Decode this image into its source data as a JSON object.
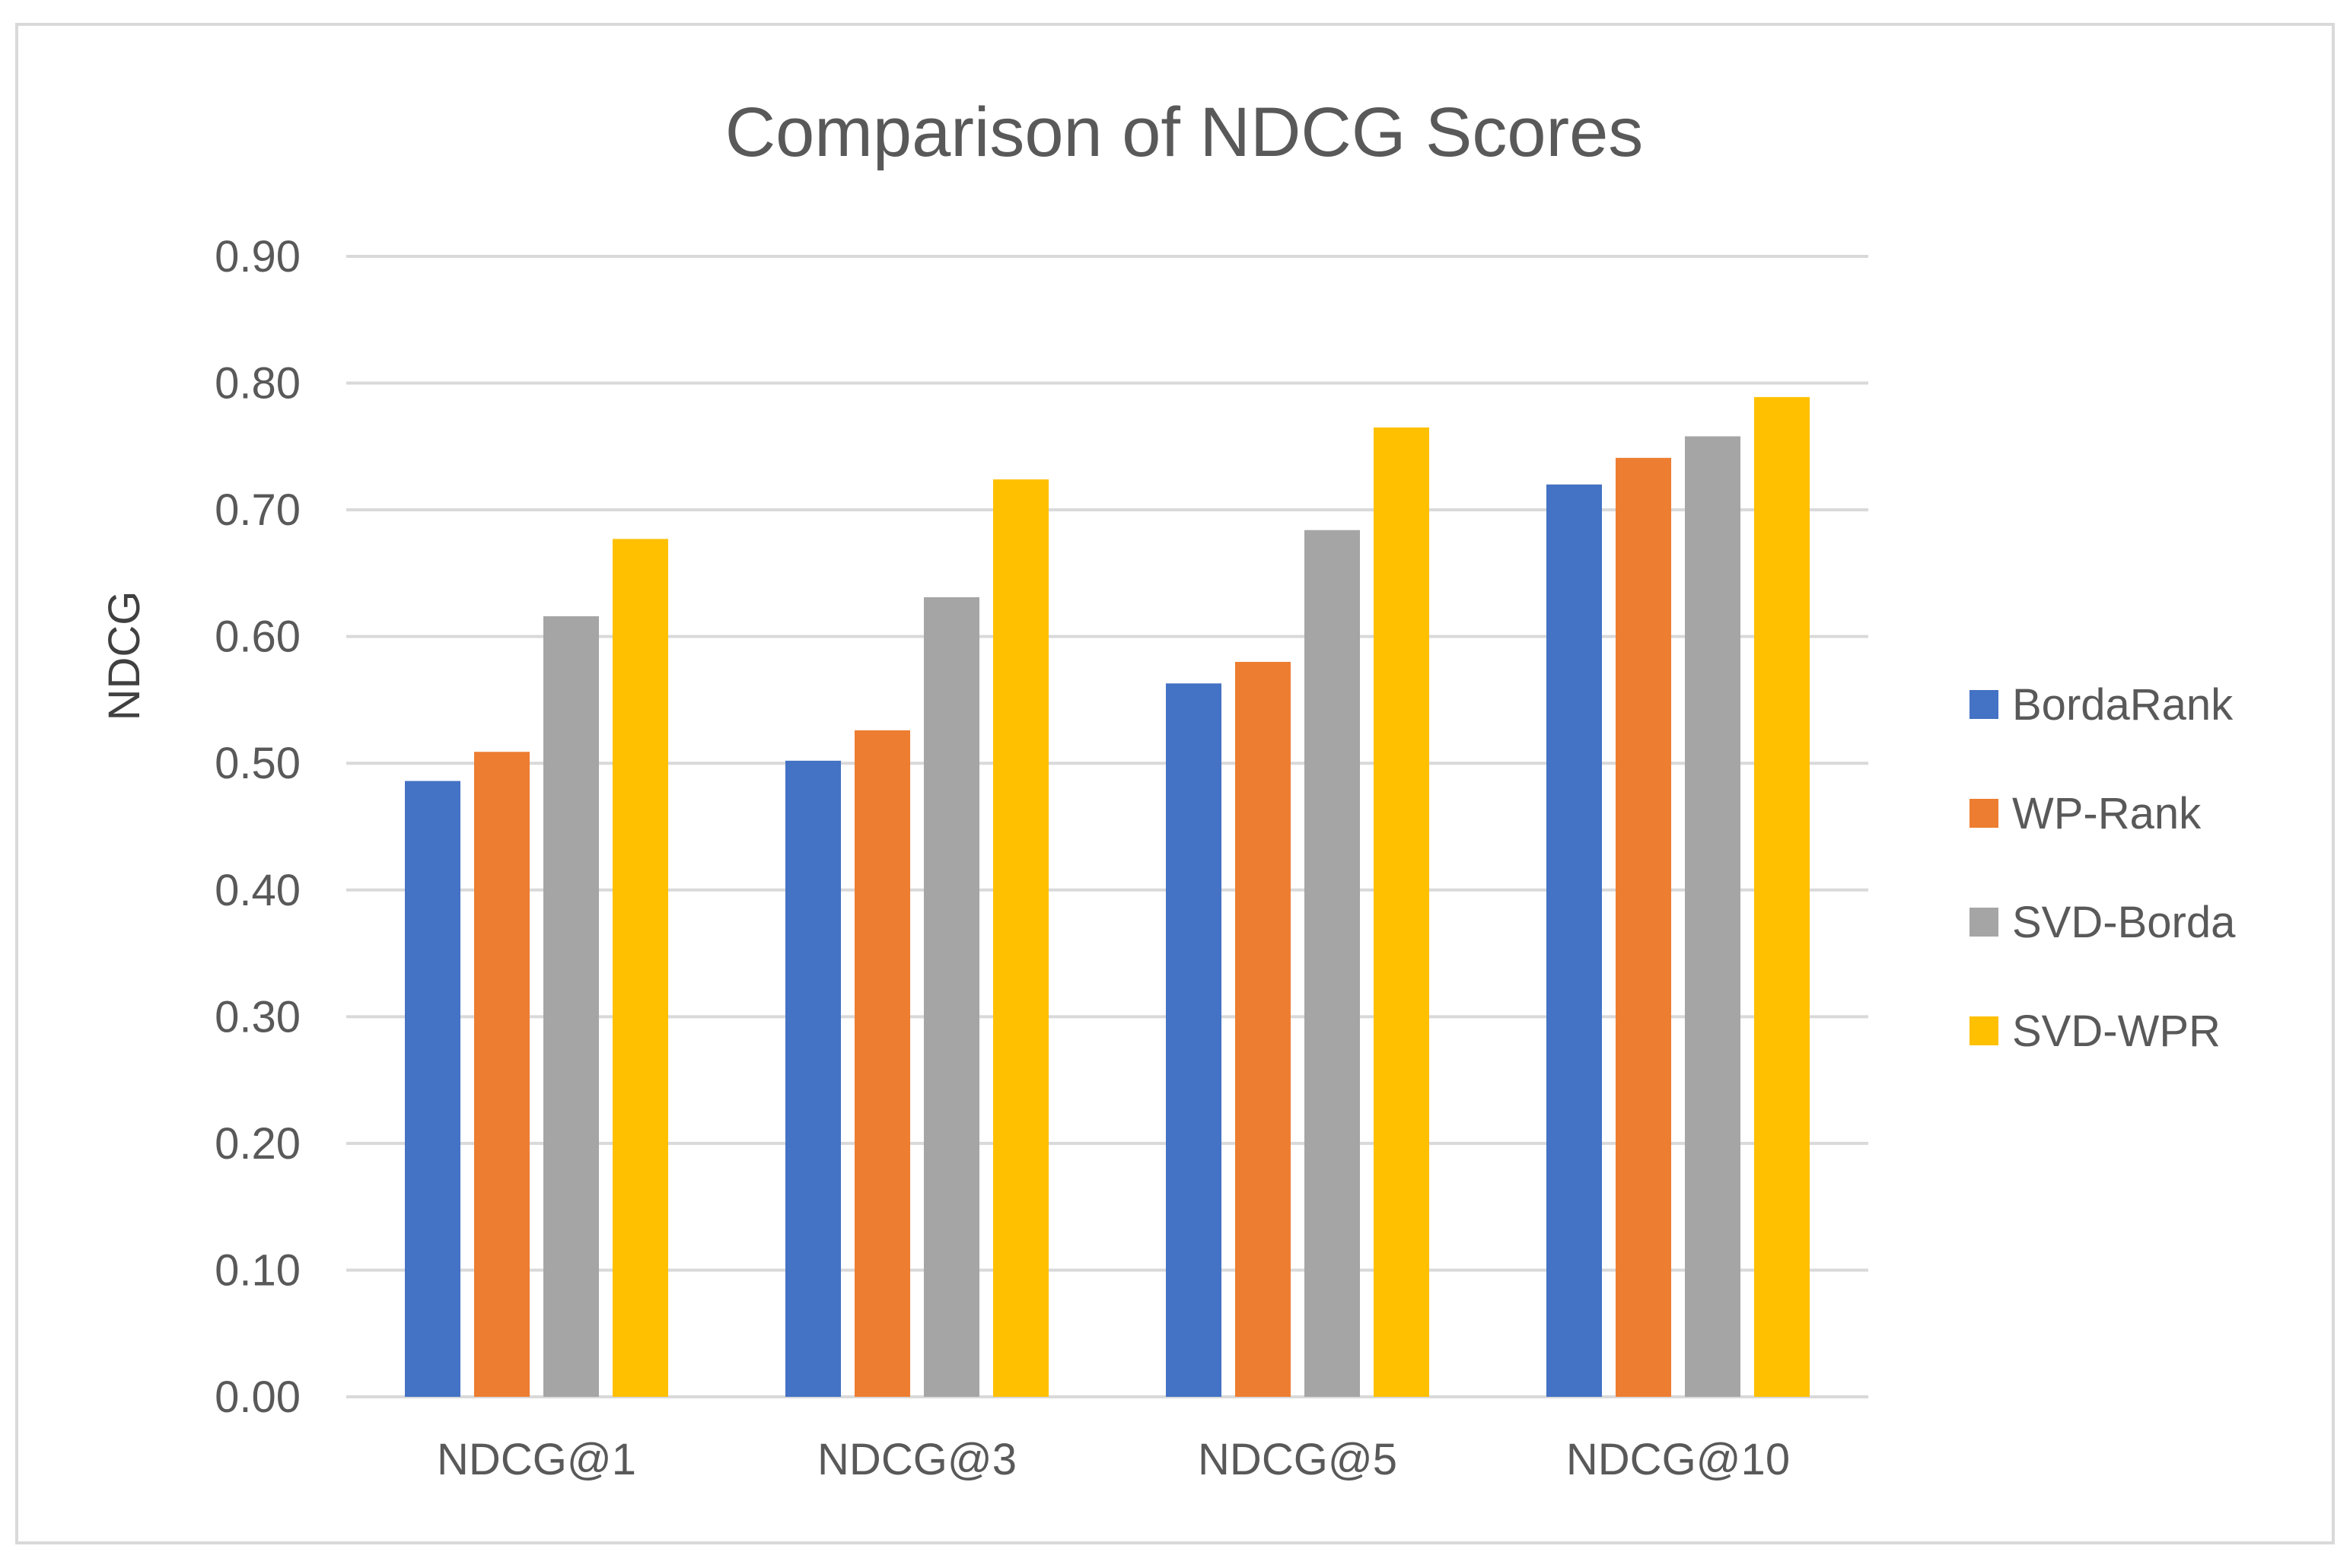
{
  "chart_data": {
    "type": "bar",
    "title": "Comparison of NDCG Scores",
    "xlabel": "",
    "ylabel": "NDCG",
    "ylim": [
      0,
      0.9
    ],
    "yticks": [
      "0.00",
      "0.10",
      "0.20",
      "0.30",
      "0.40",
      "0.50",
      "0.60",
      "0.70",
      "0.80",
      "0.90"
    ],
    "grid": true,
    "legend_position": "right",
    "categories": [
      "NDCG@1",
      "NDCG@3",
      "NDCG@5",
      "NDCG@10"
    ],
    "series": [
      {
        "name": "BordaRank",
        "color": "#4472C4",
        "values": [
          0.486,
          0.502,
          0.563,
          0.72
        ]
      },
      {
        "name": "WP-Rank",
        "color": "#ED7D31",
        "values": [
          0.509,
          0.526,
          0.58,
          0.741
        ]
      },
      {
        "name": "SVD-Borda",
        "color": "#A5A5A5",
        "values": [
          0.616,
          0.631,
          0.684,
          0.758
        ]
      },
      {
        "name": "SVD-WPR",
        "color": "#FFC000",
        "values": [
          0.677,
          0.724,
          0.765,
          0.789
        ]
      }
    ]
  }
}
